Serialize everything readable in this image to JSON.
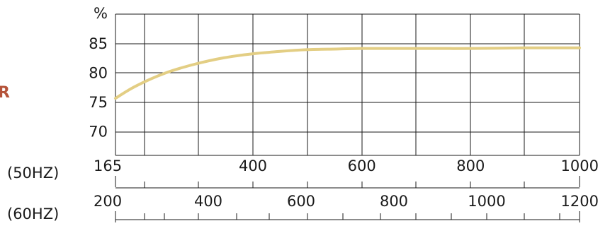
{
  "chart_data": {
    "type": "line",
    "ylabel": "%",
    "yticks": [
      70,
      75,
      80,
      85
    ],
    "ylim": [
      66,
      92
    ],
    "xlim": [
      165,
      1000
    ],
    "grid": true,
    "x_axes": [
      {
        "label": "(50HZ)",
        "ticks": [
          165,
          400,
          600,
          800,
          1000
        ]
      },
      {
        "label": "(60HZ)",
        "ticks": [
          200,
          400,
          600,
          800,
          1000,
          1200
        ]
      }
    ],
    "series": [
      {
        "color": "#e3ce84",
        "x": [
          165,
          200,
          250,
          300,
          350,
          400,
          450,
          500,
          550,
          600,
          700,
          800,
          900,
          1000
        ],
        "values": [
          75.7,
          77.8,
          80.0,
          81.5,
          82.6,
          83.3,
          83.7,
          84.0,
          84.1,
          84.2,
          84.2,
          84.2,
          84.3,
          84.3
        ]
      }
    ]
  },
  "side_label": "R",
  "side_label_color": "#b5533a"
}
